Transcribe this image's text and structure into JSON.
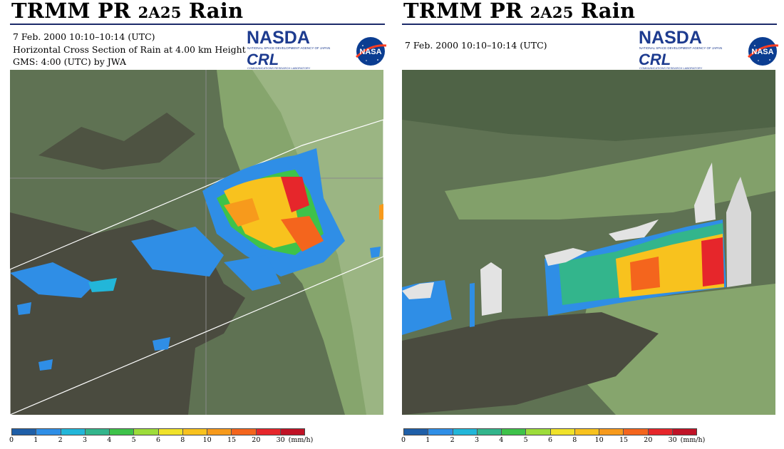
{
  "left_panel": {
    "title": "TRMM PR",
    "title_product": "2A25",
    "title_suffix": "Rain",
    "info_lines": [
      "7 Feb. 2000 10:10–10:14 (UTC)",
      "Horizontal Cross Section of Rain at 4.00 km Height",
      "GMS: 4:00 (UTC) by JWA"
    ]
  },
  "right_panel": {
    "title": "TRMM PR",
    "title_product": "2A25",
    "title_suffix": "Rain",
    "info_lines": [
      "7 Feb. 2000 10:10–10:14 (UTC)"
    ]
  },
  "logos": {
    "nasda_text": "NASDA",
    "nasda_subtitle": "NATIONAL SPACE DEVELOPMENT AGENCY OF JAPAN",
    "crl_text": "CRL",
    "crl_subtitle": "COMMUNICATIONS RESEARCH LABORATORY",
    "nasa_text": "NASA"
  },
  "color_scale": {
    "ticks": [
      "0",
      "1",
      "2",
      "3",
      "4",
      "5",
      "6",
      "8",
      "10",
      "15",
      "20",
      "30"
    ],
    "unit": "(mm/h)",
    "colors": [
      "#1f5fa8",
      "#2f8ee6",
      "#22b6d9",
      "#33b58c",
      "#3ec24a",
      "#9ddc3a",
      "#f0e22a",
      "#f8c21e",
      "#f79a1c",
      "#f4651d",
      "#e6262b",
      "#c01226"
    ]
  },
  "map_colors": {
    "land_dark": "#4a4b3f",
    "land_mid": "#5f7253",
    "land_light": "#86a56d",
    "land_pale": "#9bb583",
    "echo_top": "#e3e3e3"
  }
}
